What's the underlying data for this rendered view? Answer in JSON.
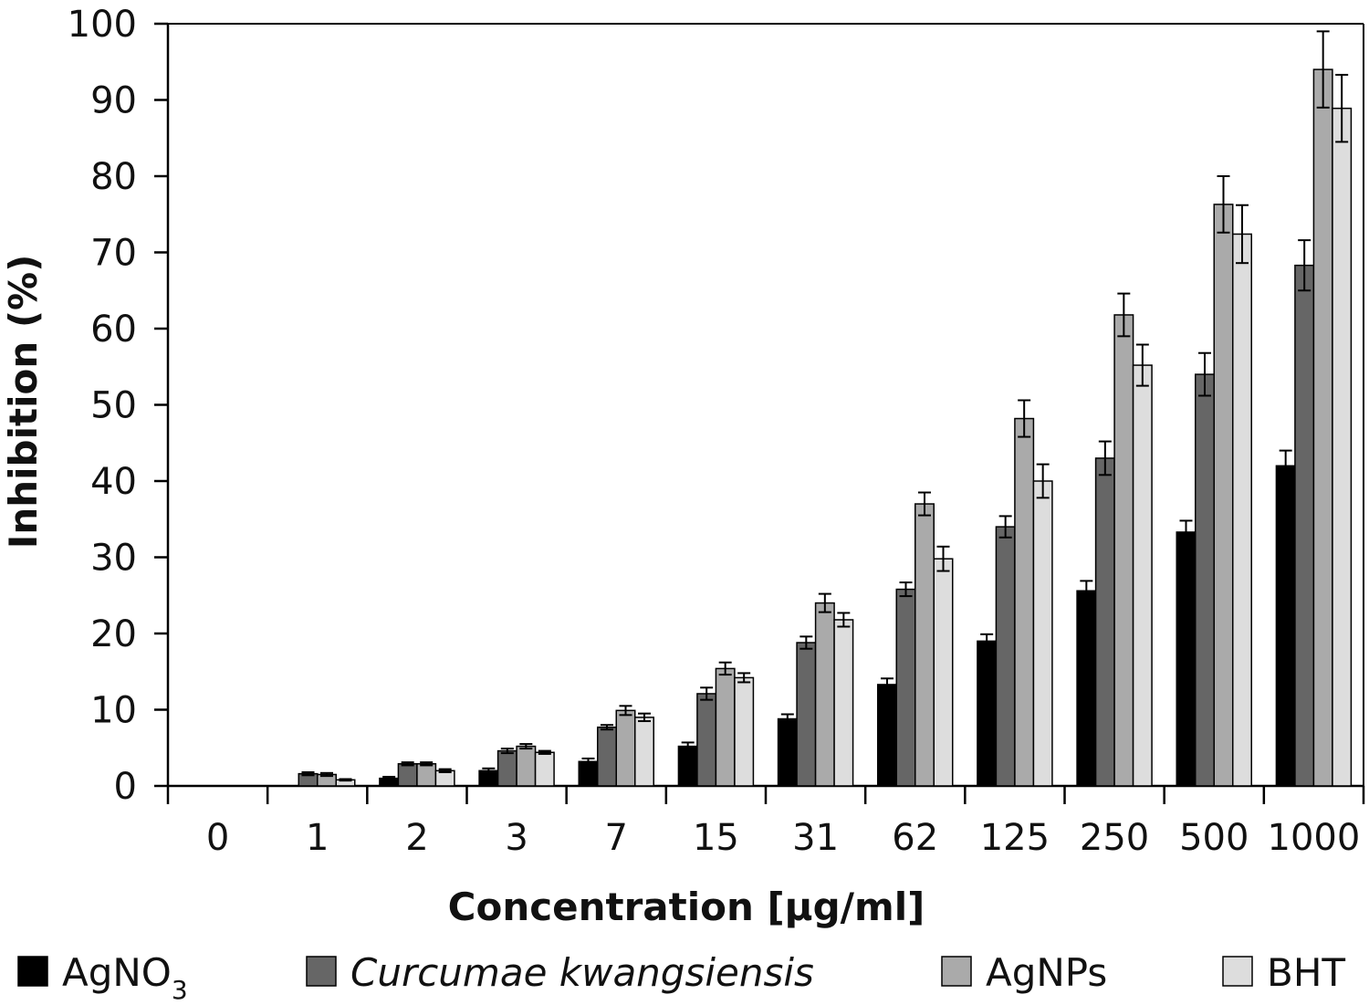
{
  "chart_data": {
    "type": "bar",
    "xlabel": "Concentration [µg/ml]",
    "ylabel": "Inhibition (%)",
    "ylim": [
      0,
      100
    ],
    "yticks": [
      0,
      10,
      20,
      30,
      40,
      50,
      60,
      70,
      80,
      90,
      100
    ],
    "categories": [
      "0",
      "1",
      "2",
      "3",
      "7",
      "15",
      "31",
      "62",
      "125",
      "250",
      "500",
      "1000"
    ],
    "legend_position": "bottom",
    "series": [
      {
        "name": "AgNO3",
        "name_base": "AgNO",
        "name_sub": "3",
        "italic": false,
        "color": "#000000",
        "values": [
          0,
          0,
          1.0,
          2.0,
          3.2,
          5.2,
          8.8,
          13.3,
          19.0,
          25.6,
          33.3,
          42.0
        ],
        "errors": [
          0,
          0,
          0.2,
          0.3,
          0.4,
          0.5,
          0.6,
          0.8,
          0.9,
          1.3,
          1.5,
          2.0
        ]
      },
      {
        "name": "Curcumae kwangsiensis",
        "italic": true,
        "color": "#666666",
        "values": [
          0,
          1.6,
          2.9,
          4.6,
          7.7,
          12.1,
          18.8,
          25.8,
          34.0,
          43.0,
          54.0,
          68.3
        ],
        "errors": [
          0,
          0.2,
          0.2,
          0.3,
          0.3,
          0.8,
          0.8,
          0.9,
          1.4,
          2.2,
          2.8,
          3.3
        ]
      },
      {
        "name": "AgNPs",
        "italic": false,
        "color": "#aaaaaa",
        "values": [
          0,
          1.5,
          2.9,
          5.2,
          9.9,
          15.4,
          24.0,
          37.0,
          48.2,
          61.8,
          76.3,
          94.0
        ],
        "errors": [
          0,
          0.2,
          0.2,
          0.3,
          0.6,
          0.8,
          1.2,
          1.5,
          2.4,
          2.8,
          3.7,
          5.0
        ]
      },
      {
        "name": "BHT",
        "italic": false,
        "color": "#dddddd",
        "values": [
          0,
          0.8,
          2.0,
          4.4,
          9.0,
          14.2,
          21.8,
          29.8,
          40.0,
          55.2,
          72.4,
          88.9
        ],
        "errors": [
          0,
          0.1,
          0.2,
          0.2,
          0.5,
          0.6,
          0.9,
          1.6,
          2.2,
          2.7,
          3.8,
          4.4
        ]
      }
    ]
  }
}
